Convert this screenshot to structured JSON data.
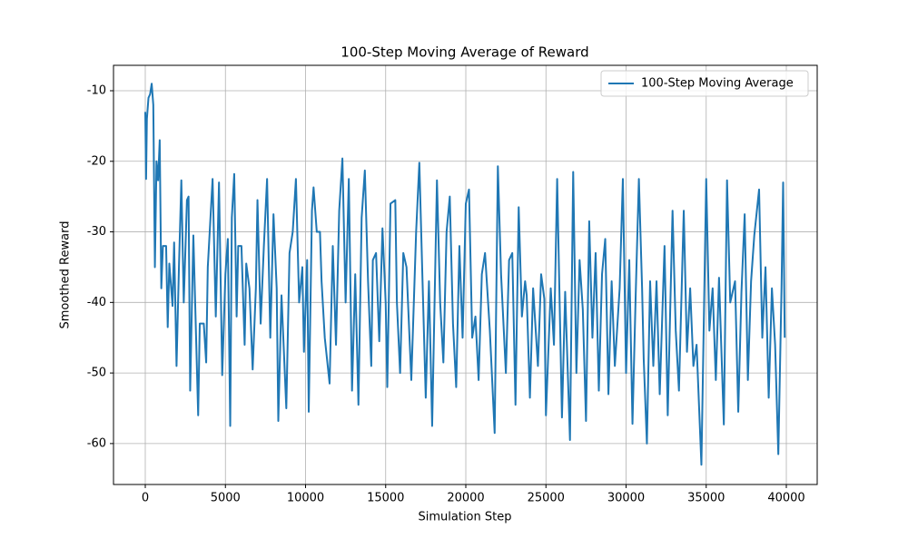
{
  "chart_data": {
    "type": "line",
    "title": "100-Step Moving Average of Reward",
    "x_label": "Simulation Step",
    "y_label": "Smoothed Reward",
    "x": [
      0,
      50,
      100,
      200,
      300,
      400,
      500,
      600,
      700,
      800,
      900,
      1000,
      1100,
      1300,
      1400,
      1500,
      1700,
      1800,
      1950,
      2100,
      2250,
      2400,
      2600,
      2700,
      2800,
      3000,
      3300,
      3400,
      3650,
      3800,
      3900,
      4200,
      4400,
      4600,
      4800,
      5000,
      5150,
      5300,
      5400,
      5550,
      5700,
      5800,
      6000,
      6200,
      6300,
      6500,
      6700,
      6900,
      7000,
      7200,
      7400,
      7600,
      7800,
      8000,
      8200,
      8300,
      8500,
      8800,
      9000,
      9200,
      9400,
      9600,
      9800,
      9900,
      10100,
      10200,
      10400,
      10500,
      10700,
      10900,
      11000,
      11200,
      11500,
      11700,
      11900,
      12100,
      12300,
      12500,
      12700,
      12900,
      13100,
      13300,
      13500,
      13700,
      13900,
      14100,
      14200,
      14400,
      14600,
      14800,
      15000,
      15100,
      15300,
      15600,
      15700,
      15900,
      16100,
      16300,
      16600,
      16900,
      17100,
      17300,
      17500,
      17700,
      17900,
      18200,
      18400,
      18600,
      18800,
      19000,
      19200,
      19400,
      19600,
      19800,
      20000,
      20200,
      20400,
      20600,
      20800,
      21000,
      21200,
      21500,
      21800,
      22000,
      22200,
      22500,
      22700,
      22900,
      23100,
      23300,
      23500,
      23700,
      23800,
      24000,
      24200,
      24500,
      24700,
      24900,
      25000,
      25300,
      25500,
      25700,
      26000,
      26200,
      26500,
      26700,
      26900,
      27100,
      27300,
      27500,
      27700,
      27900,
      28100,
      28300,
      28500,
      28700,
      28900,
      29100,
      29300,
      29600,
      29800,
      30000,
      30200,
      30400,
      30600,
      30800,
      31000,
      31100,
      31300,
      31500,
      31700,
      31900,
      32100,
      32400,
      32600,
      32900,
      33100,
      33300,
      33600,
      33800,
      34000,
      34200,
      34400,
      34700,
      35000,
      35200,
      35400,
      35600,
      35800,
      36100,
      36300,
      36500,
      36800,
      37000,
      37200,
      37400,
      37600,
      37800,
      38000,
      38300,
      38500,
      38700,
      38900,
      39100,
      39300,
      39500,
      39700,
      39800,
      39900
    ],
    "series": [
      {
        "name": "100-Step Moving Average",
        "color": "#1f77b4",
        "values": [
          -13,
          -22.5,
          -14,
          -11,
          -10.5,
          -9,
          -12,
          -35,
          -20,
          -22.7,
          -17,
          -38,
          -32,
          -32,
          -43.5,
          -34.5,
          -40.5,
          -31.5,
          -49,
          -35,
          -22.7,
          -40,
          -25.5,
          -25,
          -52.5,
          -30.5,
          -56,
          -43,
          -43,
          -48.5,
          -35,
          -22.5,
          -42,
          -23,
          -50.3,
          -36,
          -31,
          -57.5,
          -28,
          -21.8,
          -42,
          -32,
          -32,
          -46,
          -34.5,
          -38,
          -49.5,
          -38,
          -25.5,
          -43,
          -32,
          -22.5,
          -45,
          -27.5,
          -38,
          -56.8,
          -39,
          -55,
          -33,
          -30,
          -22.5,
          -40,
          -35,
          -47,
          -34,
          -55.5,
          -27,
          -23.7,
          -30,
          -30,
          -37,
          -45,
          -51.5,
          -32,
          -46,
          -27,
          -19.6,
          -40,
          -22.5,
          -52.5,
          -36,
          -54.5,
          -28,
          -21.3,
          -37,
          -49,
          -34,
          -33,
          -45.5,
          -29.5,
          -40,
          -52,
          -26,
          -25.5,
          -40,
          -50,
          -33,
          -35,
          -51,
          -30,
          -20.2,
          -37,
          -53.5,
          -37,
          -57.5,
          -22.7,
          -40,
          -48.5,
          -30,
          -25,
          -43,
          -52,
          -32,
          -45,
          -26,
          -24,
          -45,
          -42,
          -51,
          -36,
          -33,
          -44,
          -58.5,
          -20.7,
          -36,
          -50,
          -34,
          -33,
          -54.5,
          -26.5,
          -42,
          -37,
          -39,
          -53.5,
          -38,
          -49,
          -36,
          -39.5,
          -56,
          -38,
          -46,
          -22.5,
          -56.3,
          -38.5,
          -59.5,
          -21.5,
          -50,
          -34,
          -41,
          -56.8,
          -28.5,
          -45,
          -33,
          -52.5,
          -36,
          -31,
          -53,
          -37,
          -49,
          -38,
          -22.5,
          -50,
          -34,
          -57.2,
          -39,
          -22.5,
          -38,
          -48,
          -60,
          -37,
          -49,
          -37,
          -53,
          -32,
          -56,
          -27,
          -44,
          -52.5,
          -27,
          -47,
          -38,
          -49,
          -46,
          -63,
          -22.5,
          -44,
          -38,
          -51,
          -36.5,
          -57.3,
          -22.7,
          -40,
          -37,
          -55.5,
          -38.5,
          -27.5,
          -51,
          -37,
          -30.5,
          -24,
          -45,
          -35,
          -53.5,
          -38,
          -46,
          -61.5,
          -38,
          -23,
          -45
        ]
      }
    ],
    "xlim": [
      -1983,
      41926
    ],
    "ylim": [
      -65.8,
      -6.4
    ],
    "xticks": [
      0,
      5000,
      10000,
      15000,
      20000,
      25000,
      30000,
      35000,
      40000
    ],
    "yticks": [
      -60,
      -50,
      -40,
      -30,
      -20,
      -10
    ],
    "grid": true,
    "legend": "upper right"
  }
}
